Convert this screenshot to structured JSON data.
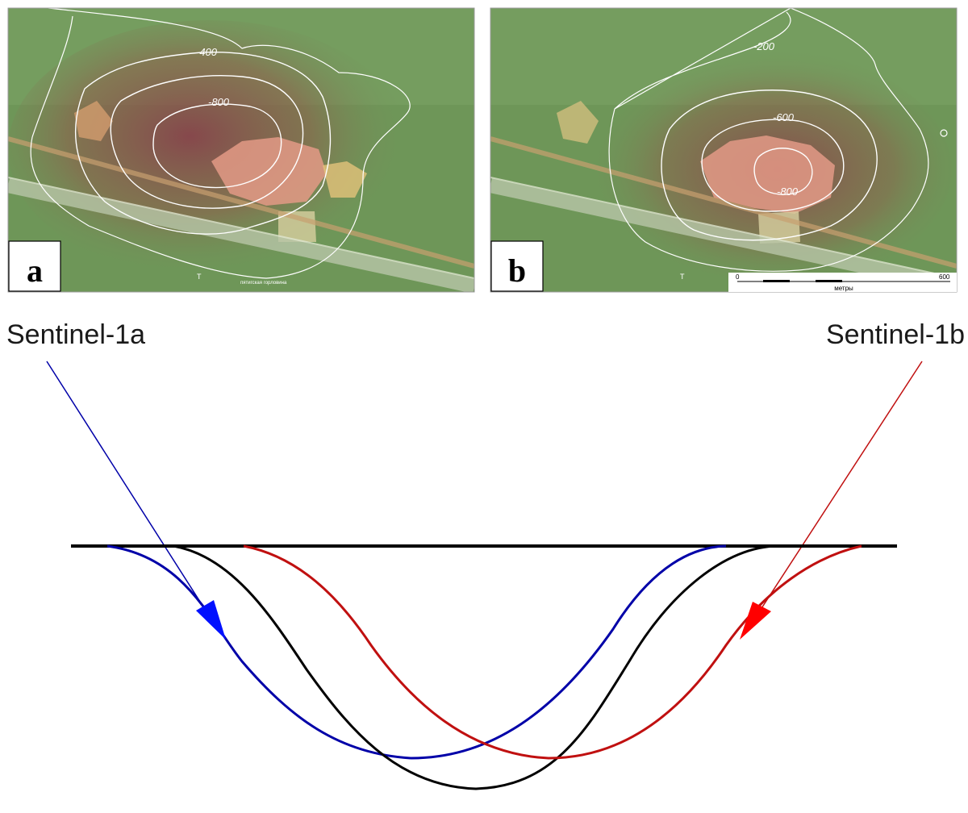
{
  "panels": [
    {
      "id": "a",
      "label": "a",
      "contour_labels": [
        "-400",
        "-800"
      ],
      "map_texts": [
        "T",
        "пятигская горловина"
      ]
    },
    {
      "id": "b",
      "label": "b",
      "contour_labels": [
        "-200",
        "-600",
        "-800"
      ],
      "map_texts": [
        "T"
      ],
      "scale_bar": {
        "start": "0",
        "end": "600",
        "unit": "метры"
      }
    }
  ],
  "satellites": [
    {
      "name": "Sentinel-1a",
      "color": "#0000a8",
      "arrow_color": "#0010ff"
    },
    {
      "name": "Sentinel-1b",
      "color": "#c01010",
      "arrow_color": "#ff0000"
    }
  ],
  "profiles": {
    "ground_color": "#000000",
    "true_profile_color": "#000000",
    "sentinel_1a_profile_color": "#0000a8",
    "sentinel_1b_profile_color": "#c01010"
  },
  "map_colors": {
    "vegetation": "#6f9a5c",
    "subsidence": "#8a4a52",
    "quarry": "#e08a78",
    "contour": "#ffffff"
  }
}
